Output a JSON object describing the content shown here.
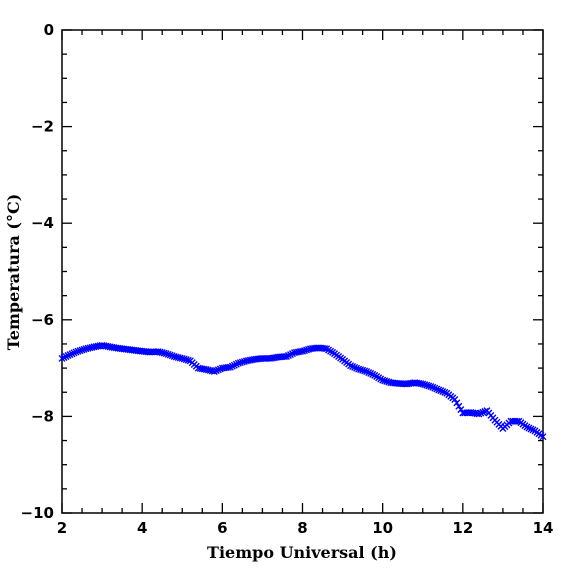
{
  "chart_data": {
    "type": "scatter",
    "title": "",
    "xlabel": "Tiempo Universal (h)",
    "ylabel": "Temperatura (°C)",
    "xlim": [
      2,
      14
    ],
    "ylim": [
      -10,
      0
    ],
    "xticks": [
      2,
      4,
      6,
      8,
      10,
      12,
      14
    ],
    "yticks": [
      0,
      -2,
      -4,
      -6,
      -8,
      -10
    ],
    "grid": false,
    "legend": "none",
    "marker": "x",
    "color": "#0000ff",
    "series": [
      {
        "x": [
          2.0,
          2.2,
          2.4,
          2.6,
          2.8,
          3.0,
          3.2,
          3.4,
          3.6,
          3.8,
          4.0,
          4.2,
          4.4,
          4.6,
          4.8,
          5.0,
          5.2,
          5.4,
          5.6,
          5.8,
          6.0,
          6.2,
          6.4,
          6.6,
          6.8,
          7.0,
          7.2,
          7.4,
          7.6,
          7.8,
          8.0,
          8.2,
          8.4,
          8.6,
          8.8,
          9.0,
          9.2,
          9.4,
          9.6,
          9.8,
          10.0,
          10.2,
          10.4,
          10.6,
          10.8,
          11.0,
          11.2,
          11.4,
          11.6,
          11.8,
          12.0,
          12.2,
          12.4,
          12.6,
          12.8,
          13.0,
          13.2,
          13.4,
          13.6,
          13.8,
          14.0
        ],
        "y": [
          -6.8,
          -6.72,
          -6.65,
          -6.6,
          -6.56,
          -6.53,
          -6.56,
          -6.59,
          -6.61,
          -6.63,
          -6.65,
          -6.67,
          -6.66,
          -6.7,
          -6.76,
          -6.8,
          -6.85,
          -7.0,
          -7.03,
          -7.07,
          -7.0,
          -6.98,
          -6.9,
          -6.85,
          -6.82,
          -6.8,
          -6.8,
          -6.77,
          -6.76,
          -6.68,
          -6.65,
          -6.6,
          -6.58,
          -6.6,
          -6.7,
          -6.82,
          -6.95,
          -7.02,
          -7.07,
          -7.15,
          -7.25,
          -7.3,
          -7.32,
          -7.33,
          -7.3,
          -7.33,
          -7.38,
          -7.45,
          -7.52,
          -7.65,
          -7.93,
          -7.92,
          -7.95,
          -7.88,
          -8.08,
          -8.25,
          -8.1,
          -8.1,
          -8.22,
          -8.3,
          -8.42
        ]
      }
    ]
  }
}
